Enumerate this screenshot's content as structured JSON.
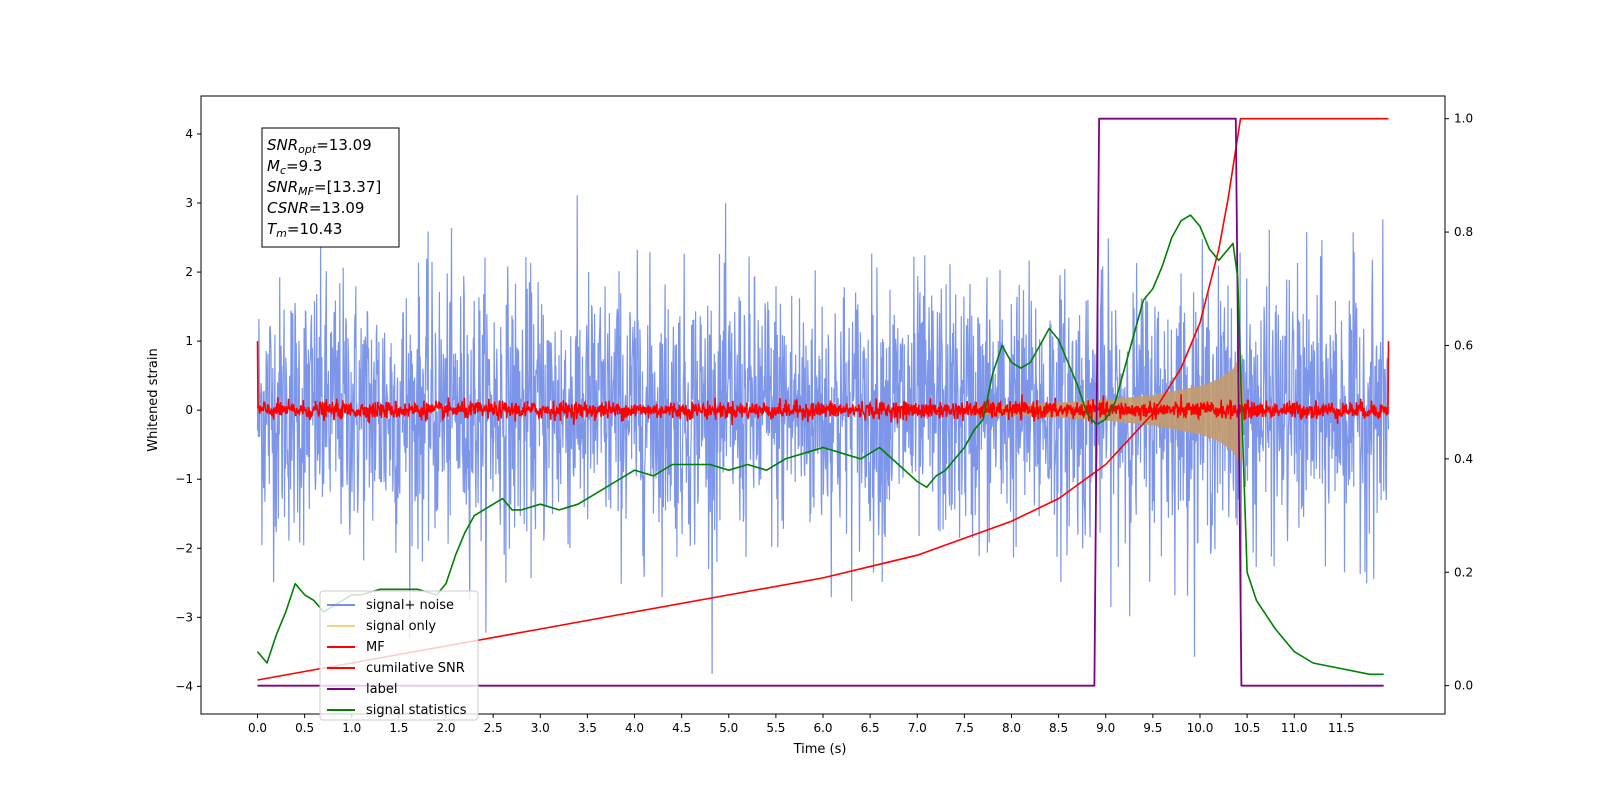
{
  "chart_data": {
    "type": "line",
    "xlabel": "Time (s)",
    "ylabel": "Whitened strain",
    "xlim": [
      -0.6,
      12.6
    ],
    "ylim": [
      -4.4,
      4.55
    ],
    "y2lim": [
      -0.05,
      1.04
    ],
    "xticks": [
      "0.0",
      "0.5",
      "1.0",
      "1.5",
      "2.0",
      "2.5",
      "3.0",
      "3.5",
      "4.0",
      "4.5",
      "5.0",
      "5.5",
      "6.0",
      "6.5",
      "7.0",
      "7.5",
      "8.0",
      "8.5",
      "9.0",
      "9.5",
      "10.0",
      "10.5",
      "11.0",
      "11.5"
    ],
    "yticks": [
      "−4",
      "−3",
      "−2",
      "−1",
      "0",
      "1",
      "2",
      "3",
      "4"
    ],
    "y2ticks": [
      "0.0",
      "0.2",
      "0.4",
      "0.6",
      "0.8",
      "1.0"
    ],
    "info_box": {
      "snr_opt": "=13.09",
      "mc": "=9.3",
      "snr_mf": "=[13.37]",
      "csnr": "=13.09",
      "tm": "=10.43"
    },
    "legend": {
      "position": "lower-left",
      "entries": [
        {
          "label": "signal+ noise",
          "color": "#7690e8"
        },
        {
          "label": "signal only",
          "color": "#f5d08a"
        },
        {
          "label": "MF",
          "color": "#ff0000"
        },
        {
          "label": "cumilative SNR",
          "color": "#ff0000"
        },
        {
          "label": "label",
          "color": "#800080"
        },
        {
          "label": "signal statistics",
          "color": "#008000"
        }
      ]
    },
    "series": [
      {
        "name": "signal+ noise",
        "axis": "left",
        "color": "#7690e8",
        "x_range": [
          0.0,
          12.0
        ],
        "amplitude_envelope": {
          "upper_typical": 2.3,
          "lower_typical": -2.3,
          "max": 4.1,
          "min": -3.85
        }
      },
      {
        "name": "signal only",
        "axis": "left",
        "color": "#f5d08a",
        "envelope": {
          "x": [
            7.5,
            8.0,
            8.5,
            9.0,
            9.5,
            10.0,
            10.2,
            10.35,
            10.43,
            10.48
          ],
          "amp": [
            0.06,
            0.08,
            0.11,
            0.15,
            0.22,
            0.35,
            0.45,
            0.6,
            0.8,
            0.0
          ]
        }
      },
      {
        "name": "MF",
        "axis": "left",
        "color": "#ff0000",
        "x_range": [
          0.0,
          12.0
        ],
        "typical_amplitude": 0.08,
        "endpoints": [
          1.0,
          1.0
        ]
      },
      {
        "name": "cumilative SNR",
        "axis": "right",
        "color": "#ff0000",
        "x": [
          0.0,
          1.0,
          2.0,
          3.0,
          4.0,
          5.0,
          6.0,
          7.0,
          7.5,
          8.0,
          8.5,
          9.0,
          9.5,
          9.8,
          10.0,
          10.2,
          10.3,
          10.43,
          10.5,
          12.0
        ],
        "y": [
          0.01,
          0.04,
          0.07,
          0.1,
          0.13,
          0.16,
          0.19,
          0.23,
          0.26,
          0.29,
          0.33,
          0.39,
          0.48,
          0.56,
          0.64,
          0.77,
          0.86,
          1.0,
          1.0,
          1.0
        ]
      },
      {
        "name": "label",
        "axis": "right",
        "color": "#800080",
        "x": [
          0.0,
          8.88,
          8.93,
          10.38,
          10.44,
          11.95
        ],
        "y": [
          0.0,
          0.0,
          1.0,
          1.0,
          0.0,
          0.0
        ]
      },
      {
        "name": "signal statistics",
        "axis": "right",
        "color": "#008000",
        "x": [
          0.0,
          0.1,
          0.2,
          0.3,
          0.4,
          0.5,
          0.6,
          0.7,
          0.8,
          0.9,
          1.0,
          1.1,
          1.3,
          1.5,
          1.7,
          1.9,
          2.0,
          2.1,
          2.2,
          2.3,
          2.5,
          2.6,
          2.7,
          2.8,
          3.0,
          3.2,
          3.4,
          3.6,
          3.8,
          4.0,
          4.2,
          4.4,
          4.6,
          4.8,
          5.0,
          5.2,
          5.4,
          5.6,
          5.8,
          6.0,
          6.2,
          6.4,
          6.6,
          6.8,
          7.0,
          7.1,
          7.2,
          7.3,
          7.4,
          7.5,
          7.6,
          7.7,
          7.8,
          7.9,
          8.0,
          8.1,
          8.2,
          8.3,
          8.4,
          8.5,
          8.6,
          8.7,
          8.8,
          8.9,
          9.0,
          9.1,
          9.2,
          9.3,
          9.4,
          9.5,
          9.6,
          9.7,
          9.8,
          9.9,
          10.0,
          10.1,
          10.2,
          10.25,
          10.3,
          10.35,
          10.4,
          10.45,
          10.5,
          10.6,
          10.8,
          11.0,
          11.2,
          11.5,
          11.8,
          11.95
        ],
        "y": [
          0.06,
          0.04,
          0.09,
          0.13,
          0.18,
          0.16,
          0.15,
          0.13,
          0.14,
          0.15,
          0.16,
          0.16,
          0.17,
          0.17,
          0.17,
          0.16,
          0.18,
          0.23,
          0.27,
          0.3,
          0.32,
          0.33,
          0.31,
          0.31,
          0.32,
          0.31,
          0.32,
          0.34,
          0.36,
          0.38,
          0.37,
          0.39,
          0.39,
          0.39,
          0.38,
          0.39,
          0.38,
          0.4,
          0.41,
          0.42,
          0.41,
          0.4,
          0.42,
          0.39,
          0.36,
          0.35,
          0.37,
          0.38,
          0.4,
          0.42,
          0.45,
          0.47,
          0.55,
          0.6,
          0.57,
          0.56,
          0.57,
          0.6,
          0.63,
          0.61,
          0.57,
          0.53,
          0.48,
          0.46,
          0.47,
          0.5,
          0.56,
          0.62,
          0.68,
          0.7,
          0.74,
          0.79,
          0.82,
          0.83,
          0.81,
          0.77,
          0.75,
          0.76,
          0.77,
          0.78,
          0.72,
          0.45,
          0.2,
          0.15,
          0.1,
          0.06,
          0.04,
          0.03,
          0.02,
          0.02
        ]
      }
    ]
  }
}
